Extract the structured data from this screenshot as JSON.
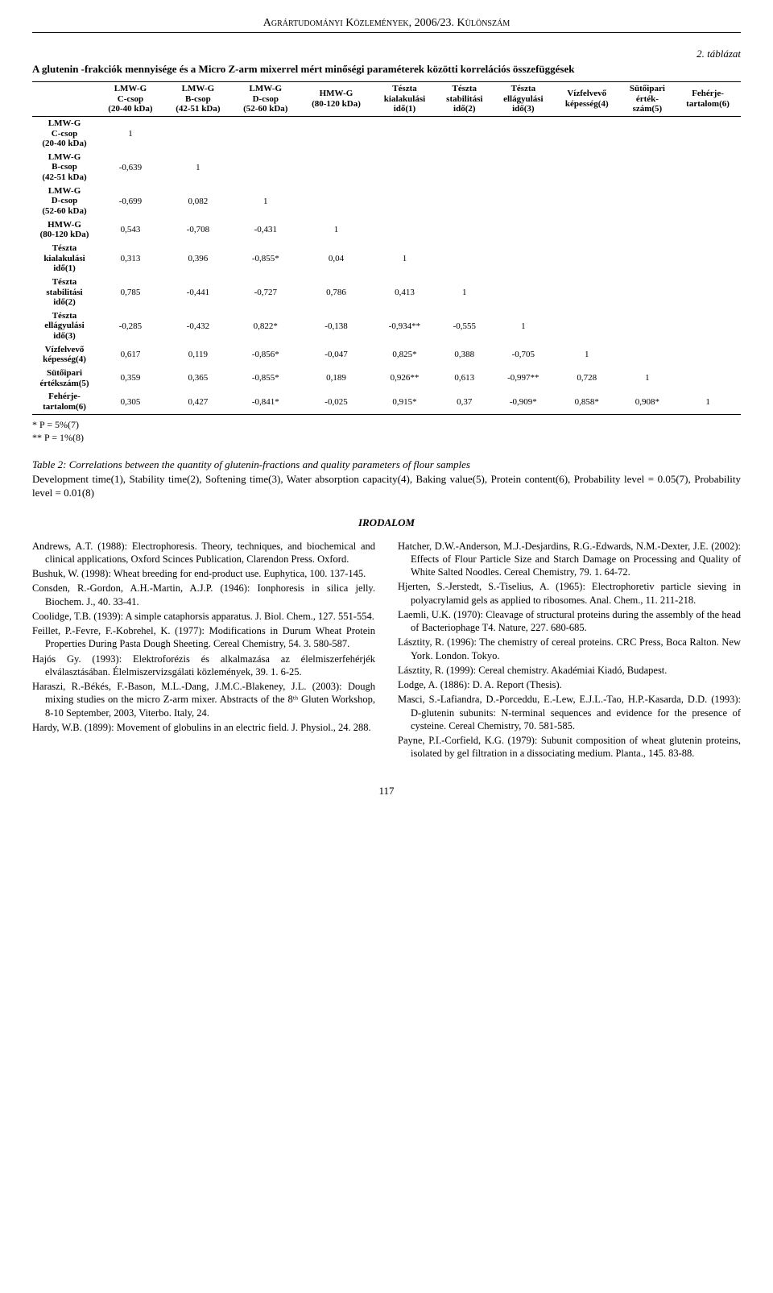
{
  "header": "Agrártudományi Közlemények, 2006/23. Különszám",
  "table": {
    "label": "2. táblázat",
    "title": "A glutenin -frakciók mennyisége és a Micro Z-arm mixerrel mért minőségi paraméterek közötti korrelációs összefüggések",
    "headers": [
      "",
      "LMW-G\nC-csop\n(20-40 kDa)",
      "LMW-G\nB-csop\n(42-51 kDa)",
      "LMW-G\nD-csop\n(52-60 kDa)",
      "HMW-G\n(80-120 kDa)",
      "Tészta\nkialakulási\nidő(1)",
      "Tészta\nstabilitási\nidő(2)",
      "Tészta\nellágyulási\nidő(3)",
      "Vízfelvevő\nképesség(4)",
      "Sütőipari\nérték-\nszám(5)",
      "Fehérje-\ntartalom(6)"
    ],
    "rows": [
      {
        "label": "LMW-G\nC-csop\n(20-40 kDa)",
        "cells": [
          "1",
          "",
          "",
          "",
          "",
          "",
          "",
          "",
          "",
          ""
        ]
      },
      {
        "label": "LMW-G\nB-csop\n(42-51 kDa)",
        "cells": [
          "-0,639",
          "1",
          "",
          "",
          "",
          "",
          "",
          "",
          "",
          ""
        ]
      },
      {
        "label": "LMW-G\nD-csop\n(52-60 kDa)",
        "cells": [
          "-0,699",
          "0,082",
          "1",
          "",
          "",
          "",
          "",
          "",
          "",
          ""
        ]
      },
      {
        "label": "HMW-G\n(80-120 kDa)",
        "cells": [
          "0,543",
          "-0,708",
          "-0,431",
          "1",
          "",
          "",
          "",
          "",
          "",
          ""
        ]
      },
      {
        "label": "Tészta\nkialakulási\nidő(1)",
        "cells": [
          "0,313",
          "0,396",
          "-0,855*",
          "0,04",
          "1",
          "",
          "",
          "",
          "",
          ""
        ]
      },
      {
        "label": "Tészta\nstabilitási\nidő(2)",
        "cells": [
          "0,785",
          "-0,441",
          "-0,727",
          "0,786",
          "0,413",
          "1",
          "",
          "",
          "",
          ""
        ]
      },
      {
        "label": "Tészta\nellágyulási\nidő(3)",
        "cells": [
          "-0,285",
          "-0,432",
          "0,822*",
          "-0,138",
          "-0,934**",
          "-0,555",
          "1",
          "",
          "",
          ""
        ]
      },
      {
        "label": "Vízfelvevő\nképesség(4)",
        "cells": [
          "0,617",
          "0,119",
          "-0,856*",
          "-0,047",
          "0,825*",
          "0,388",
          "-0,705",
          "1",
          "",
          ""
        ]
      },
      {
        "label": "Sütőipari\nértékszám(5)",
        "cells": [
          "0,359",
          "0,365",
          "-0,855*",
          "0,189",
          "0,926**",
          "0,613",
          "-0,997**",
          "0,728",
          "1",
          ""
        ]
      },
      {
        "label": "Fehérje-\ntartalom(6)",
        "cells": [
          "0,305",
          "0,427",
          "-0,841*",
          "-0,025",
          "0,915*",
          "0,37",
          "-0,909*",
          "0,858*",
          "0,908*",
          "1"
        ]
      }
    ]
  },
  "footnotes": {
    "p5": "* P = 5%(7)",
    "p1": "** P = 1%(8)"
  },
  "caption": {
    "italic": "Table 2: Correlations between the quantity of glutenin-fractions and quality parameters of flour samples",
    "rest": "Development time(1), Stability time(2), Softening time(3), Water absorption capacity(4), Baking value(5), Protein content(6), Probability level = 0.05(7), Probability level = 0.01(8)"
  },
  "section_heading": "IRODALOM",
  "refs_left": [
    "Andrews, A.T. (1988): Electrophoresis. Theory, techniques, and biochemical and clinical applications, Oxford Scinces Publication, Clarendon Press. Oxford.",
    "Bushuk, W. (1998): Wheat breeding for end-product use. Euphytica, 100. 137-145.",
    "Consden, R.-Gordon, A.H.-Martin, A.J.P. (1946): Ionphoresis in silica jelly. Biochem. J., 40. 33-41.",
    "Coolidge, T.B. (1939): A simple cataphorsis apparatus. J. Biol. Chem., 127. 551-554.",
    "Feillet, P.-Fevre, F.-Kobrehel, K. (1977): Modifications in Durum Wheat Protein Properties During Pasta Dough Sheeting. Cereal Chemistry, 54. 3. 580-587.",
    "Hajós Gy. (1993): Elektroforézis és alkalmazása az élelmiszerfehérjék elválasztásában. Élelmiszervizsgálati közlemények, 39. 1. 6-25.",
    "Haraszi, R.-Békés, F.-Bason, M.L.-Dang, J.M.C.-Blakeney, J.L. (2003): Dough mixing studies on the micro Z-arm mixer. Abstracts of the 8ᵗʰ Gluten Workshop, 8-10 September, 2003, Viterbo. Italy, 24.",
    "Hardy, W.B. (1899): Movement of globulins in an electric field. J. Physiol., 24. 288."
  ],
  "refs_right": [
    "Hatcher, D.W.-Anderson, M.J.-Desjardins, R.G.-Edwards, N.M.-Dexter, J.E. (2002): Effects of Flour Particle Size and Starch Damage on Processing and Quality of White Salted Noodles. Cereal Chemistry, 79. 1. 64-72.",
    "Hjerten, S.-Jerstedt, S.-Tiselius, A. (1965): Electrophoretiv particle sieving in polyacrylamid gels as applied to ribosomes. Anal. Chem., 11. 211-218.",
    "Laemli, U.K. (1970): Cleavage of structural proteins during the assembly of the head of Bacteriophage T4. Nature, 227. 680-685.",
    "Lásztity, R. (1996): The chemistry of cereal proteins. CRC Press, Boca Ralton. New York. London. Tokyo.",
    "Lásztity, R. (1999): Cereal chemistry. Akadémiai Kiadó, Budapest.",
    "Lodge, A. (1886): D. A. Report (Thesis).",
    "Masci, S.-Lafiandra, D.-Porceddu, E.-Lew, E.J.L.-Tao, H.P.-Kasarda, D.D. (1993): D-glutenin subunits: N-terminal sequences and evidence for the presence of cysteine. Cereal Chemistry, 70. 581-585.",
    "Payne, P.I.-Corfield, K.G. (1979): Subunit composition of wheat glutenin proteins, isolated by gel filtration in a dissociating medium. Planta., 145. 83-88."
  ],
  "page_number": "117"
}
